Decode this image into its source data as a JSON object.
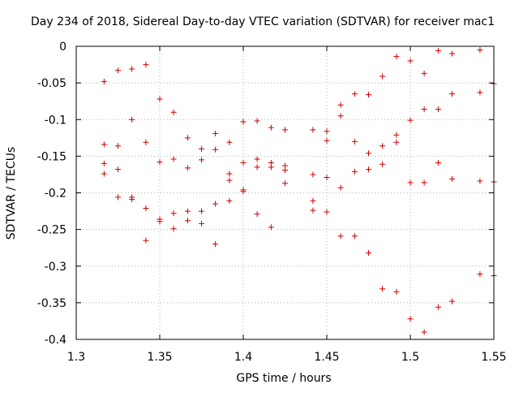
{
  "chart_data": {
    "type": "scatter",
    "title": "Day 234 of 2018, Sidereal Day-to-day VTEC variation (SDTVAR) for receiver mac1",
    "xlabel": "GPS time / hours",
    "ylabel": "SDTVAR / TECUs",
    "xlim": [
      1.3,
      1.55
    ],
    "ylim": [
      -0.4,
      0
    ],
    "xticks": [
      1.3,
      1.35,
      1.4,
      1.45,
      1.5,
      1.55
    ],
    "xtick_labels": [
      "1.3",
      "1.35",
      "1.4",
      "1.45",
      "1.5",
      "1.55"
    ],
    "yticks": [
      0,
      -0.05,
      -0.1,
      -0.15,
      -0.2,
      -0.25,
      -0.3,
      -0.35,
      -0.4
    ],
    "ytick_labels": [
      "0",
      "-0.05",
      "-0.1",
      "-0.15",
      "-0.2",
      "-0.25",
      "-0.3",
      "-0.35",
      "-0.4"
    ],
    "grid": true,
    "marker": "+",
    "colors": {
      "marker": "#cc0000",
      "grid": "#b0b0b0",
      "axis": "#000000"
    },
    "series": [
      {
        "name": "SDTVAR",
        "points": [
          [
            1.3167,
            -0.048
          ],
          [
            1.3167,
            -0.134
          ],
          [
            1.3167,
            -0.16
          ],
          [
            1.3167,
            -0.174
          ],
          [
            1.325,
            -0.033
          ],
          [
            1.325,
            -0.136
          ],
          [
            1.325,
            -0.168
          ],
          [
            1.325,
            -0.206
          ],
          [
            1.3333,
            -0.031
          ],
          [
            1.3333,
            -0.1
          ],
          [
            1.3333,
            -0.206
          ],
          [
            1.3333,
            -0.209
          ],
          [
            1.3417,
            -0.025
          ],
          [
            1.3417,
            -0.131
          ],
          [
            1.3417,
            -0.221
          ],
          [
            1.3417,
            -0.265
          ],
          [
            1.35,
            -0.072
          ],
          [
            1.35,
            -0.158
          ],
          [
            1.35,
            -0.236
          ],
          [
            1.35,
            -0.239
          ],
          [
            1.3583,
            -0.09
          ],
          [
            1.3583,
            -0.154
          ],
          [
            1.3583,
            -0.228
          ],
          [
            1.3583,
            -0.249
          ],
          [
            1.3667,
            -0.125
          ],
          [
            1.3667,
            -0.166
          ],
          [
            1.3667,
            -0.225
          ],
          [
            1.3667,
            -0.238
          ],
          [
            1.375,
            -0.14
          ],
          [
            1.375,
            -0.155
          ],
          [
            1.375,
            -0.225
          ],
          [
            1.375,
            -0.242
          ],
          [
            1.3833,
            -0.119
          ],
          [
            1.3833,
            -0.141
          ],
          [
            1.3833,
            -0.215
          ],
          [
            1.3833,
            -0.27
          ],
          [
            1.3917,
            -0.131
          ],
          [
            1.3917,
            -0.174
          ],
          [
            1.3917,
            -0.183
          ],
          [
            1.3917,
            -0.211
          ],
          [
            1.4,
            -0.103
          ],
          [
            1.4,
            -0.159
          ],
          [
            1.4,
            -0.196
          ],
          [
            1.4,
            -0.198
          ],
          [
            1.4083,
            -0.102
          ],
          [
            1.4083,
            -0.154
          ],
          [
            1.4083,
            -0.165
          ],
          [
            1.4083,
            -0.229
          ],
          [
            1.4167,
            -0.111
          ],
          [
            1.4167,
            -0.159
          ],
          [
            1.4167,
            -0.165
          ],
          [
            1.4167,
            -0.247
          ],
          [
            1.425,
            -0.114
          ],
          [
            1.425,
            -0.163
          ],
          [
            1.425,
            -0.169
          ],
          [
            1.425,
            -0.187
          ],
          [
            1.4417,
            -0.114
          ],
          [
            1.4417,
            -0.175
          ],
          [
            1.4417,
            -0.211
          ],
          [
            1.4417,
            -0.224
          ],
          [
            1.45,
            -0.116
          ],
          [
            1.45,
            -0.129
          ],
          [
            1.45,
            -0.179
          ],
          [
            1.45,
            -0.226
          ],
          [
            1.4583,
            -0.08
          ],
          [
            1.4583,
            -0.095
          ],
          [
            1.4583,
            -0.193
          ],
          [
            1.4583,
            -0.259
          ],
          [
            1.4667,
            -0.065
          ],
          [
            1.4667,
            -0.13
          ],
          [
            1.4667,
            -0.171
          ],
          [
            1.4667,
            -0.259
          ],
          [
            1.475,
            -0.066
          ],
          [
            1.475,
            -0.146
          ],
          [
            1.475,
            -0.168
          ],
          [
            1.475,
            -0.282
          ],
          [
            1.4833,
            -0.041
          ],
          [
            1.4833,
            -0.136
          ],
          [
            1.4833,
            -0.161
          ],
          [
            1.4833,
            -0.331
          ],
          [
            1.4917,
            -0.014
          ],
          [
            1.4917,
            -0.121
          ],
          [
            1.4917,
            -0.131
          ],
          [
            1.4917,
            -0.335
          ],
          [
            1.5,
            -0.02
          ],
          [
            1.5,
            -0.101
          ],
          [
            1.5,
            -0.186
          ],
          [
            1.5,
            -0.372
          ],
          [
            1.5083,
            -0.037
          ],
          [
            1.5083,
            -0.086
          ],
          [
            1.5083,
            -0.186
          ],
          [
            1.5083,
            -0.39
          ],
          [
            1.5167,
            -0.006
          ],
          [
            1.5167,
            -0.086
          ],
          [
            1.5167,
            -0.159
          ],
          [
            1.5167,
            -0.356
          ],
          [
            1.525,
            -0.01
          ],
          [
            1.525,
            -0.065
          ],
          [
            1.525,
            -0.181
          ],
          [
            1.525,
            -0.348
          ],
          [
            1.5417,
            -0.005
          ],
          [
            1.5417,
            -0.063
          ],
          [
            1.5417,
            -0.184
          ],
          [
            1.5417,
            -0.311
          ],
          [
            1.55,
            -0.051
          ],
          [
            1.55,
            -0.185
          ],
          [
            1.55,
            -0.313
          ]
        ]
      }
    ]
  }
}
